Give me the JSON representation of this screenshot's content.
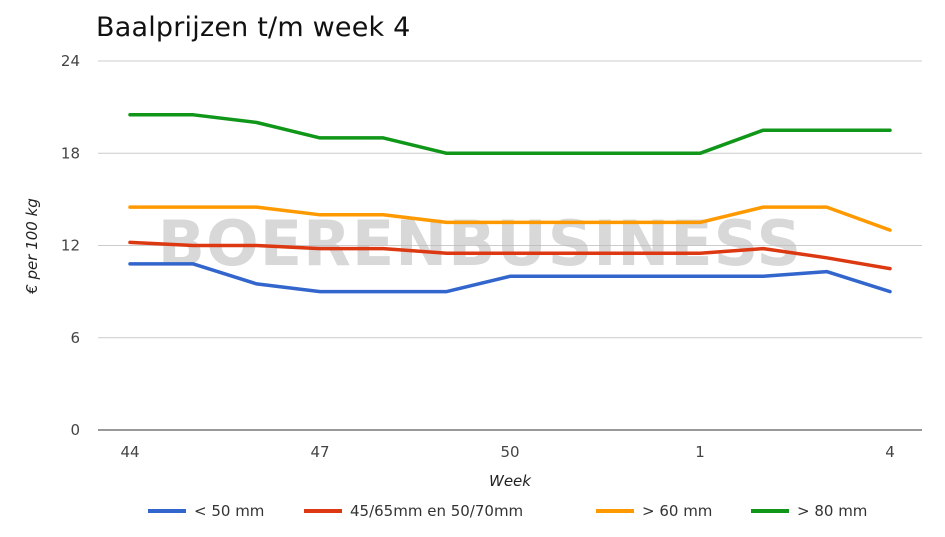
{
  "watermark": "BOERENBUSINESS",
  "chart_data": {
    "type": "line",
    "title": "Baalprijzen t/m week 4",
    "xlabel": "Week",
    "ylabel": "€ per 100 kg",
    "ylim": [
      0,
      24
    ],
    "yticks": [
      0,
      6,
      12,
      18,
      24
    ],
    "xtick_labels": [
      "44",
      "47",
      "50",
      "1",
      "4"
    ],
    "categories": [
      "44",
      "45",
      "46",
      "47",
      "48",
      "49",
      "50",
      "51",
      "52",
      "1",
      "2",
      "3",
      "4"
    ],
    "grid": true,
    "legend_position": "bottom",
    "series": [
      {
        "name": "< 50 mm",
        "color": "#3366cc",
        "values": [
          10.8,
          10.8,
          9.5,
          9.0,
          9.0,
          9.0,
          10.0,
          10.0,
          10.0,
          10.0,
          10.0,
          10.3,
          9.0
        ]
      },
      {
        "name": "45/65mm en 50/70mm",
        "color": "#dc3912",
        "values": [
          12.2,
          12.0,
          12.0,
          11.8,
          11.8,
          11.5,
          11.5,
          11.5,
          11.5,
          11.5,
          11.8,
          11.2,
          10.5
        ]
      },
      {
        "name": "> 60 mm",
        "color": "#ff9900",
        "values": [
          14.5,
          14.5,
          14.5,
          14.0,
          14.0,
          13.5,
          13.5,
          13.5,
          13.5,
          13.5,
          14.5,
          14.5,
          13.0
        ]
      },
      {
        "name": "> 80 mm",
        "color": "#109618",
        "values": [
          20.5,
          20.5,
          20.0,
          19.0,
          19.0,
          18.0,
          18.0,
          18.0,
          18.0,
          18.0,
          19.5,
          19.5,
          19.5
        ]
      }
    ]
  }
}
